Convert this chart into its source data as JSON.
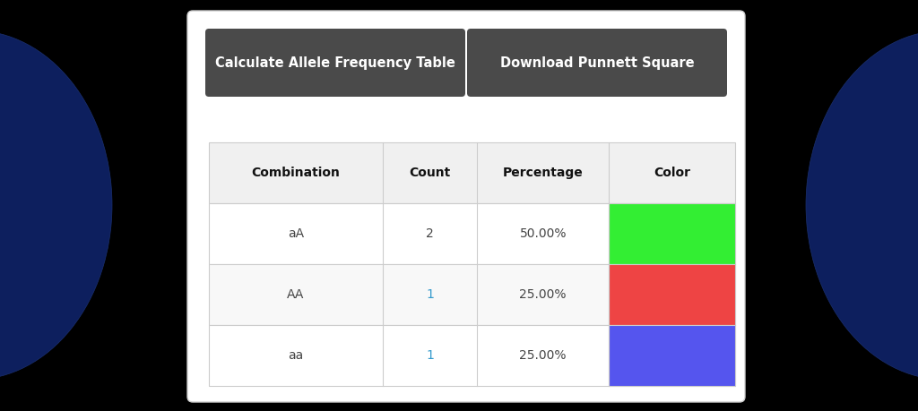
{
  "bg_color": "#000000",
  "ellipse_color": "#0d1f5e",
  "card_color": "#ffffff",
  "card_border_color": "#cccccc",
  "btn1_text": "Calculate Allele Frequency Table",
  "btn2_text": "Download Punnett Square",
  "btn_color": "#4a4a4a",
  "btn_text_color": "#ffffff",
  "table_header": [
    "Combination",
    "Count",
    "Percentage",
    "Color"
  ],
  "table_rows": [
    [
      "aA",
      "2",
      "50.00%",
      "#33ee33"
    ],
    [
      "AA",
      "1",
      "25.00%",
      "#ee4444"
    ],
    [
      "aa",
      "1",
      "25.00%",
      "#5555ee"
    ]
  ],
  "header_bg": "#f0f0f0",
  "row_bg_odd": "#f8f8f8",
  "row_bg_even": "#ffffff",
  "table_border_color": "#cccccc",
  "header_font_color": "#111111",
  "cell_font_color": "#444444",
  "count_font_color": "#3399cc",
  "figsize": [
    10.24,
    4.59
  ],
  "dpi": 100
}
